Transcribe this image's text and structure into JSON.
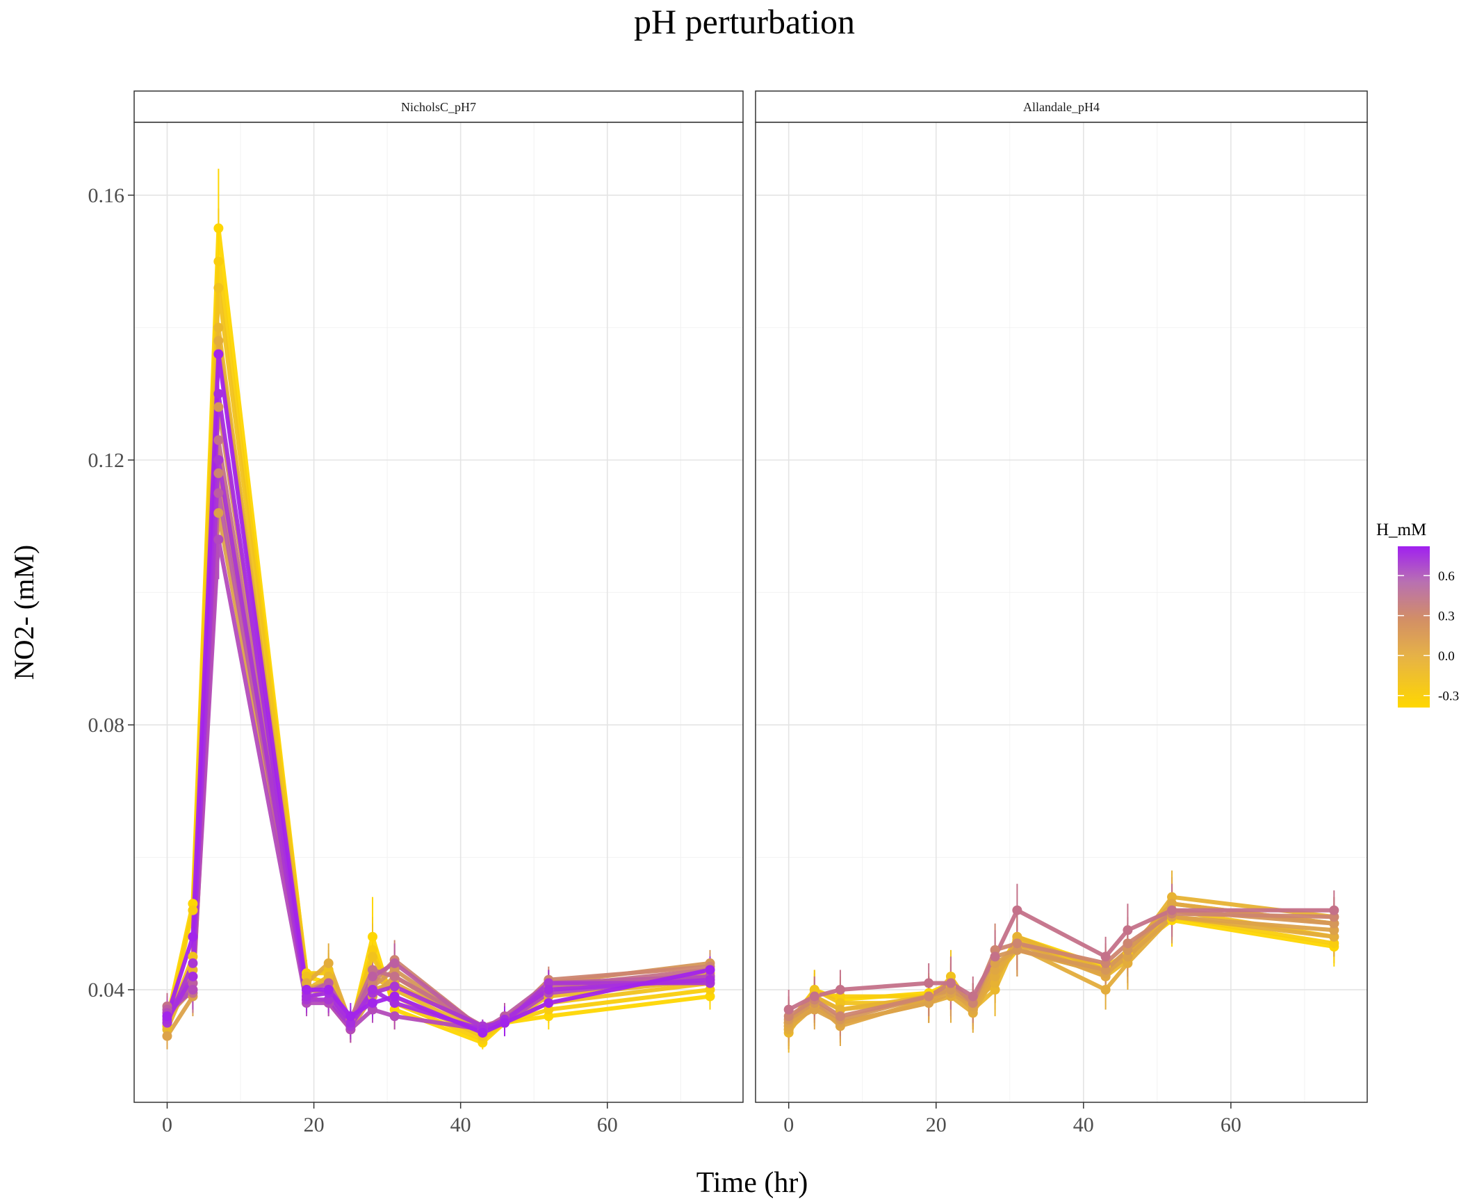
{
  "chart_data": {
    "type": "line",
    "title": "pH perturbation",
    "xlabel": "Time (hr)",
    "ylabel": "NO2- (mM)",
    "xlim": [
      -4.5,
      78.5
    ],
    "ylim": [
      0.023,
      0.171
    ],
    "x_ticks": [
      0,
      20,
      40,
      60
    ],
    "x_tick_labels": [
      "0",
      "20",
      "40",
      "60"
    ],
    "y_ticks": [
      0.04,
      0.08,
      0.12,
      0.16
    ],
    "y_tick_labels": [
      "0.04",
      "0.08",
      "0.12",
      "0.16"
    ],
    "grid": true,
    "legend": {
      "title": "H_mM",
      "position": "right",
      "type": "colorbar",
      "ticks": [
        0.6,
        0.3,
        0.0,
        -0.3
      ],
      "tick_labels": [
        "0.6",
        "0.3",
        "0.0",
        "-0.3"
      ],
      "range": [
        -0.39,
        0.82
      ],
      "color_low": "#FFD700",
      "color_mid": "#D4955B",
      "color_high": "#A020F0"
    },
    "x": [
      0,
      3.5,
      7,
      19,
      22,
      25,
      28,
      31,
      43,
      46,
      52,
      74
    ],
    "panels": [
      {
        "strip": "NicholsC_pH7",
        "series": [
          {
            "h": 0.8,
            "y": [
              0.036,
              0.048,
              0.136,
              0.04,
              0.04,
              0.036,
              0.038,
              0.039,
              0.0335,
              0.035,
              0.038,
              0.043
            ],
            "err": [
              0.002,
              0.002,
              0.006,
              0.002,
              0.002,
              0.002,
              0.002,
              0.002,
              0.001,
              0.002,
              0.002,
              0.002
            ]
          },
          {
            "h": 0.75,
            "y": [
              0.0355,
              0.042,
              0.13,
              0.039,
              0.0395,
              0.035,
              0.04,
              0.038,
              0.034,
              0.0355,
              0.04,
              0.0415
            ],
            "err": [
              0.002,
              0.003,
              0.006,
              0.002,
              0.002,
              0.002,
              0.003,
              0.002,
              0.001,
              0.002,
              0.002,
              0.002
            ]
          },
          {
            "h": 0.7,
            "y": [
              0.035,
              0.044,
              0.12,
              0.0385,
              0.0385,
              0.0345,
              0.0395,
              0.0405,
              0.0345,
              0.035,
              0.041,
              0.041
            ],
            "err": [
              0.002,
              0.002,
              0.005,
              0.002,
              0.002,
              0.002,
              0.004,
              0.003,
              0.001,
              0.002,
              0.002,
              0.002
            ]
          },
          {
            "h": 0.6,
            "y": [
              0.0365,
              0.04,
              0.108,
              0.038,
              0.038,
              0.034,
              0.037,
              0.036,
              0.034,
              0.035,
              0.0395,
              0.042
            ],
            "err": [
              0.002,
              0.003,
              0.006,
              0.002,
              0.002,
              0.002,
              0.002,
              0.002,
              0.001,
              0.002,
              0.002,
              0.002
            ]
          },
          {
            "h": 0.5,
            "y": [
              0.037,
              0.041,
              0.115,
              0.0395,
              0.041,
              0.035,
              0.042,
              0.044,
              0.034,
              0.036,
              0.041,
              0.042
            ],
            "err": [
              0.002,
              0.003,
              0.006,
              0.002,
              0.002,
              0.002,
              0.004,
              0.003,
              0.001,
              0.002,
              0.002,
              0.002
            ]
          },
          {
            "h": 0.4,
            "y": [
              0.0375,
              0.0395,
              0.123,
              0.0385,
              0.04,
              0.0355,
              0.043,
              0.042,
              0.0345,
              0.0355,
              0.0405,
              0.043
            ],
            "err": [
              0.002,
              0.003,
              0.006,
              0.002,
              0.003,
              0.002,
              0.004,
              0.003,
              0.001,
              0.002,
              0.002,
              0.002
            ]
          },
          {
            "h": 0.3,
            "y": [
              0.036,
              0.041,
              0.118,
              0.04,
              0.0395,
              0.0345,
              0.041,
              0.0445,
              0.034,
              0.035,
              0.0415,
              0.0435
            ],
            "err": [
              0.002,
              0.003,
              0.006,
              0.002,
              0.002,
              0.002,
              0.004,
              0.003,
              0.001,
              0.002,
              0.002,
              0.002
            ]
          },
          {
            "h": 0.2,
            "y": [
              0.036,
              0.04,
              0.128,
              0.04,
              0.041,
              0.035,
              0.0405,
              0.043,
              0.034,
              0.0355,
              0.041,
              0.044
            ],
            "err": [
              0.002,
              0.003,
              0.006,
              0.002,
              0.003,
              0.002,
              0.004,
              0.003,
              0.001,
              0.002,
              0.002,
              0.002
            ]
          },
          {
            "h": 0.1,
            "y": [
              0.033,
              0.039,
              0.112,
              0.039,
              0.038,
              0.034,
              0.039,
              0.042,
              0.034,
              0.035,
              0.04,
              0.0425
            ],
            "err": [
              0.002,
              0.003,
              0.006,
              0.002,
              0.002,
              0.002,
              0.003,
              0.003,
              0.001,
              0.002,
              0.002,
              0.002
            ]
          },
          {
            "h": 0.0,
            "y": [
              0.035,
              0.042,
              0.138,
              0.041,
              0.044,
              0.035,
              0.04,
              0.041,
              0.034,
              0.0355,
              0.04,
              0.042
            ],
            "err": [
              0.002,
              0.003,
              0.006,
              0.002,
              0.003,
              0.002,
              0.004,
              0.003,
              0.001,
              0.002,
              0.002,
              0.002
            ]
          },
          {
            "h": -0.1,
            "y": [
              0.034,
              0.043,
              0.14,
              0.04,
              0.042,
              0.0345,
              0.042,
              0.04,
              0.0335,
              0.035,
              0.039,
              0.0415
            ],
            "err": [
              0.002,
              0.003,
              0.006,
              0.002,
              0.003,
              0.002,
              0.004,
              0.003,
              0.001,
              0.002,
              0.002,
              0.002
            ]
          },
          {
            "h": -0.2,
            "y": [
              0.035,
              0.045,
              0.146,
              0.042,
              0.043,
              0.035,
              0.045,
              0.039,
              0.033,
              0.035,
              0.038,
              0.041
            ],
            "err": [
              0.002,
              0.003,
              0.006,
              0.002,
              0.003,
              0.002,
              0.005,
              0.003,
              0.001,
              0.002,
              0.002,
              0.002
            ]
          },
          {
            "h": -0.3,
            "y": [
              0.0345,
              0.052,
              0.15,
              0.0425,
              0.0425,
              0.0345,
              0.046,
              0.038,
              0.0325,
              0.035,
              0.037,
              0.04
            ],
            "err": [
              0.002,
              0.003,
              0.008,
              0.002,
              0.003,
              0.002,
              0.005,
              0.003,
              0.001,
              0.002,
              0.002,
              0.002
            ]
          },
          {
            "h": -0.38,
            "y": [
              0.0355,
              0.053,
              0.155,
              0.042,
              0.041,
              0.034,
              0.048,
              0.037,
              0.032,
              0.035,
              0.036,
              0.039
            ],
            "err": [
              0.002,
              0.003,
              0.009,
              0.002,
              0.003,
              0.002,
              0.006,
              0.003,
              0.001,
              0.002,
              0.002,
              0.002
            ]
          }
        ]
      },
      {
        "strip": "Allandale_pH4",
        "series": [
          {
            "h": 0.4,
            "y": [
              0.037,
              0.039,
              0.04,
              0.041,
              0.041,
              0.039,
              0.045,
              0.052,
              0.045,
              0.049,
              0.052,
              0.052
            ],
            "err": [
              0.003,
              0.003,
              0.003,
              0.003,
              0.004,
              0.003,
              0.004,
              0.004,
              0.003,
              0.004,
              0.004,
              0.003
            ]
          },
          {
            "h": 0.3,
            "y": [
              0.036,
              0.0385,
              0.036,
              0.039,
              0.041,
              0.038,
              0.046,
              0.047,
              0.044,
              0.047,
              0.0515,
              0.051
            ],
            "err": [
              0.003,
              0.003,
              0.003,
              0.003,
              0.004,
              0.003,
              0.004,
              0.004,
              0.003,
              0.004,
              0.004,
              0.003
            ]
          },
          {
            "h": 0.2,
            "y": [
              0.0355,
              0.038,
              0.0355,
              0.039,
              0.04,
              0.038,
              0.045,
              0.046,
              0.043,
              0.046,
              0.052,
              0.05
            ],
            "err": [
              0.003,
              0.003,
              0.003,
              0.003,
              0.004,
              0.003,
              0.004,
              0.004,
              0.003,
              0.004,
              0.004,
              0.003
            ]
          },
          {
            "h": 0.1,
            "y": [
              0.035,
              0.037,
              0.035,
              0.038,
              0.0395,
              0.0375,
              0.044,
              0.046,
              0.0425,
              0.045,
              0.051,
              0.049
            ],
            "err": [
              0.003,
              0.003,
              0.003,
              0.003,
              0.004,
              0.003,
              0.004,
              0.004,
              0.003,
              0.004,
              0.004,
              0.003
            ]
          },
          {
            "h": 0.05,
            "y": [
              0.0345,
              0.038,
              0.0345,
              0.0385,
              0.04,
              0.037,
              0.043,
              0.047,
              0.042,
              0.046,
              0.053,
              0.05
            ],
            "err": [
              0.003,
              0.003,
              0.003,
              0.003,
              0.004,
              0.003,
              0.004,
              0.004,
              0.003,
              0.004,
              0.004,
              0.003
            ]
          },
          {
            "h": 0.0,
            "y": [
              0.034,
              0.0375,
              0.035,
              0.038,
              0.039,
              0.0365,
              0.042,
              0.0465,
              0.04,
              0.044,
              0.051,
              0.048
            ],
            "err": [
              0.003,
              0.003,
              0.003,
              0.003,
              0.004,
              0.003,
              0.004,
              0.004,
              0.003,
              0.004,
              0.004,
              0.003
            ]
          },
          {
            "h": -0.05,
            "y": [
              0.035,
              0.039,
              0.037,
              0.039,
              0.041,
              0.038,
              0.041,
              0.048,
              0.043,
              0.045,
              0.054,
              0.051
            ],
            "err": [
              0.003,
              0.003,
              0.003,
              0.003,
              0.004,
              0.003,
              0.004,
              0.004,
              0.003,
              0.004,
              0.004,
              0.003
            ]
          },
          {
            "h": -0.1,
            "y": [
              0.0335,
              0.039,
              0.037,
              0.0385,
              0.0405,
              0.037,
              0.04,
              0.0475,
              0.042,
              0.0445,
              0.053,
              0.05
            ],
            "err": [
              0.003,
              0.003,
              0.003,
              0.003,
              0.004,
              0.003,
              0.004,
              0.004,
              0.003,
              0.004,
              0.004,
              0.003
            ]
          },
          {
            "h": -0.2,
            "y": [
              0.0345,
              0.04,
              0.038,
              0.038,
              0.042,
              0.037,
              0.042,
              0.046,
              0.0425,
              0.045,
              0.052,
              0.048
            ],
            "err": [
              0.003,
              0.003,
              0.003,
              0.003,
              0.004,
              0.003,
              0.004,
              0.004,
              0.003,
              0.004,
              0.004,
              0.003
            ]
          },
          {
            "h": -0.3,
            "y": [
              0.034,
              0.0395,
              0.039,
              0.039,
              0.04,
              0.038,
              0.043,
              0.047,
              0.043,
              0.046,
              0.051,
              0.047
            ],
            "err": [
              0.003,
              0.003,
              0.003,
              0.003,
              0.004,
              0.003,
              0.004,
              0.004,
              0.003,
              0.004,
              0.004,
              0.003
            ]
          },
          {
            "h": -0.38,
            "y": [
              0.035,
              0.04,
              0.0385,
              0.0395,
              0.041,
              0.0375,
              0.042,
              0.048,
              0.0435,
              0.0455,
              0.0505,
              0.0465
            ],
            "err": [
              0.003,
              0.003,
              0.003,
              0.003,
              0.004,
              0.003,
              0.004,
              0.004,
              0.003,
              0.004,
              0.004,
              0.003
            ]
          }
        ]
      }
    ]
  }
}
